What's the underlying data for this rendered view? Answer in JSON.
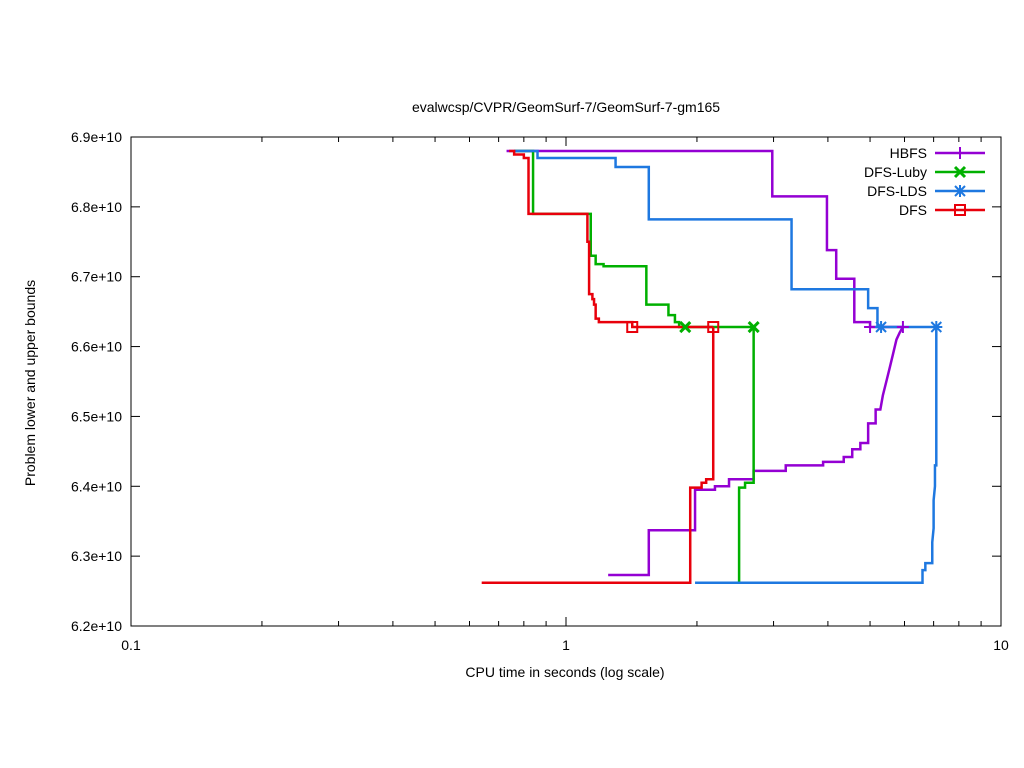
{
  "chart_data": {
    "type": "line",
    "title": "evalwcsp/CVPR/GeomSurf-7/GeomSurf-7-gm165",
    "xlabel": "CPU time in seconds (log scale)",
    "ylabel": "Problem lower and upper bounds",
    "xscale": "log",
    "xlim": [
      0.1,
      10
    ],
    "ylim": [
      62000000000.0,
      69000000000.0
    ],
    "xticks": [
      0.1,
      1,
      10
    ],
    "xtick_labels": [
      "0.1",
      "1",
      "10"
    ],
    "yticks": [
      62000000000.0,
      63000000000.0,
      64000000000.0,
      65000000000.0,
      66000000000.0,
      67000000000.0,
      68000000000.0,
      69000000000.0
    ],
    "ytick_labels": [
      "6.2e+10",
      "6.3e+10",
      "6.4e+10",
      "6.5e+10",
      "6.6e+10",
      "6.7e+10",
      "6.8e+10",
      "6.9e+10"
    ],
    "legend_position": "top-right",
    "series": [
      {
        "name": "HBFS",
        "color": "#9400d3",
        "marker": "plus",
        "upper": [
          [
            0.73,
            68800000000.0
          ],
          [
            2.98,
            68800000000.0
          ],
          [
            2.98,
            68150000000.0
          ],
          [
            3.98,
            68150000000.0
          ],
          [
            3.98,
            67380000000.0
          ],
          [
            4.18,
            67380000000.0
          ],
          [
            4.18,
            66970000000.0
          ],
          [
            4.6,
            66970000000.0
          ],
          [
            4.6,
            66350000000.0
          ],
          [
            5.0,
            66350000000.0
          ],
          [
            5.0,
            66280000000.0
          ],
          [
            5.95,
            66280000000.0
          ]
        ],
        "lower": [
          [
            1.25,
            62730000000.0
          ],
          [
            1.55,
            62730000000.0
          ],
          [
            1.55,
            63370000000.0
          ],
          [
            1.98,
            63370000000.0
          ],
          [
            1.98,
            63950000000.0
          ],
          [
            2.2,
            63950000000.0
          ],
          [
            2.2,
            64000000000.0
          ],
          [
            2.37,
            64000000000.0
          ],
          [
            2.37,
            64100000000.0
          ],
          [
            2.7,
            64100000000.0
          ],
          [
            2.7,
            64220000000.0
          ],
          [
            3.2,
            64220000000.0
          ],
          [
            3.2,
            64300000000.0
          ],
          [
            3.9,
            64300000000.0
          ],
          [
            3.9,
            64350000000.0
          ],
          [
            4.35,
            64350000000.0
          ],
          [
            4.35,
            64420000000.0
          ],
          [
            4.55,
            64420000000.0
          ],
          [
            4.55,
            64530000000.0
          ],
          [
            4.75,
            64530000000.0
          ],
          [
            4.75,
            64620000000.0
          ],
          [
            4.95,
            64620000000.0
          ],
          [
            4.95,
            64900000000.0
          ],
          [
            5.15,
            64900000000.0
          ],
          [
            5.15,
            65100000000.0
          ],
          [
            5.28,
            65100000000.0
          ],
          [
            5.35,
            65300000000.0
          ],
          [
            5.45,
            65500000000.0
          ],
          [
            5.55,
            65700000000.0
          ],
          [
            5.65,
            65900000000.0
          ],
          [
            5.75,
            66100000000.0
          ],
          [
            5.85,
            66200000000.0
          ],
          [
            5.95,
            66280000000.0
          ]
        ]
      },
      {
        "name": "DFS-Luby",
        "color": "#00b000",
        "marker": "cross",
        "upper": [
          [
            0.76,
            68800000000.0
          ],
          [
            0.84,
            68800000000.0
          ],
          [
            0.84,
            67900000000.0
          ],
          [
            1.14,
            67900000000.0
          ],
          [
            1.14,
            67300000000.0
          ],
          [
            1.17,
            67300000000.0
          ],
          [
            1.17,
            67180000000.0
          ],
          [
            1.22,
            67180000000.0
          ],
          [
            1.22,
            67150000000.0
          ],
          [
            1.53,
            67150000000.0
          ],
          [
            1.53,
            66600000000.0
          ],
          [
            1.72,
            66600000000.0
          ],
          [
            1.72,
            66450000000.0
          ],
          [
            1.78,
            66450000000.0
          ],
          [
            1.78,
            66350000000.0
          ],
          [
            1.82,
            66350000000.0
          ],
          [
            1.82,
            66280000000.0
          ],
          [
            2.7,
            66280000000.0
          ]
        ],
        "lower": [
          [
            2.5,
            62620000000.0
          ],
          [
            2.5,
            63980000000.0
          ],
          [
            2.58,
            63980000000.0
          ],
          [
            2.58,
            64050000000.0
          ],
          [
            2.7,
            64050000000.0
          ],
          [
            2.7,
            66280000000.0
          ]
        ]
      },
      {
        "name": "DFS-LDS",
        "color": "#1e78e0",
        "marker": "star",
        "upper": [
          [
            0.76,
            68800000000.0
          ],
          [
            0.86,
            68800000000.0
          ],
          [
            0.86,
            68700000000.0
          ],
          [
            1.3,
            68700000000.0
          ],
          [
            1.3,
            68570000000.0
          ],
          [
            1.55,
            68570000000.0
          ],
          [
            1.55,
            67820000000.0
          ],
          [
            3.3,
            67820000000.0
          ],
          [
            3.3,
            66820000000.0
          ],
          [
            4.95,
            66820000000.0
          ],
          [
            4.95,
            66550000000.0
          ],
          [
            5.2,
            66550000000.0
          ],
          [
            5.2,
            66280000000.0
          ],
          [
            7.1,
            66280000000.0
          ]
        ],
        "lower": [
          [
            1.98,
            62620000000.0
          ],
          [
            6.6,
            62620000000.0
          ],
          [
            6.6,
            62800000000.0
          ],
          [
            6.7,
            62800000000.0
          ],
          [
            6.7,
            62900000000.0
          ],
          [
            6.95,
            62900000000.0
          ],
          [
            6.95,
            63200000000.0
          ],
          [
            7.0,
            63400000000.0
          ],
          [
            7.0,
            63800000000.0
          ],
          [
            7.05,
            64000000000.0
          ],
          [
            7.05,
            64300000000.0
          ],
          [
            7.1,
            64300000000.0
          ],
          [
            7.1,
            66280000000.0
          ]
        ]
      },
      {
        "name": "DFS",
        "color": "#e8000b",
        "marker": "square",
        "upper": [
          [
            0.74,
            68800000000.0
          ],
          [
            0.76,
            68800000000.0
          ],
          [
            0.76,
            68750000000.0
          ],
          [
            0.8,
            68750000000.0
          ],
          [
            0.8,
            68700000000.0
          ],
          [
            0.82,
            68700000000.0
          ],
          [
            0.82,
            67900000000.0
          ],
          [
            1.12,
            67900000000.0
          ],
          [
            1.12,
            67500000000.0
          ],
          [
            1.13,
            67500000000.0
          ],
          [
            1.13,
            66750000000.0
          ],
          [
            1.15,
            66750000000.0
          ],
          [
            1.15,
            66680000000.0
          ],
          [
            1.16,
            66680000000.0
          ],
          [
            1.16,
            66600000000.0
          ],
          [
            1.17,
            66600000000.0
          ],
          [
            1.17,
            66400000000.0
          ],
          [
            1.19,
            66400000000.0
          ],
          [
            1.19,
            66350000000.0
          ],
          [
            1.42,
            66350000000.0
          ],
          [
            1.42,
            66280000000.0
          ],
          [
            2.18,
            66280000000.0
          ]
        ],
        "lower": [
          [
            0.64,
            62620000000.0
          ],
          [
            1.93,
            62620000000.0
          ],
          [
            1.93,
            63980000000.0
          ],
          [
            2.05,
            63980000000.0
          ],
          [
            2.05,
            64050000000.0
          ],
          [
            2.1,
            64050000000.0
          ],
          [
            2.1,
            64100000000.0
          ],
          [
            2.18,
            64100000000.0
          ],
          [
            2.18,
            66280000000.0
          ]
        ]
      }
    ],
    "markers": [
      {
        "series": "HBFS",
        "points": [
          [
            5.0,
            66280000000.0
          ],
          [
            5.95,
            66280000000.0
          ]
        ]
      },
      {
        "series": "DFS-Luby",
        "points": [
          [
            1.88,
            66280000000.0
          ],
          [
            2.7,
            66280000000.0
          ]
        ]
      },
      {
        "series": "DFS-LDS",
        "points": [
          [
            5.3,
            66280000000.0
          ],
          [
            7.1,
            66280000000.0
          ]
        ]
      },
      {
        "series": "DFS",
        "points": [
          [
            1.42,
            66280000000.0
          ],
          [
            2.18,
            66280000000.0
          ]
        ]
      }
    ]
  }
}
